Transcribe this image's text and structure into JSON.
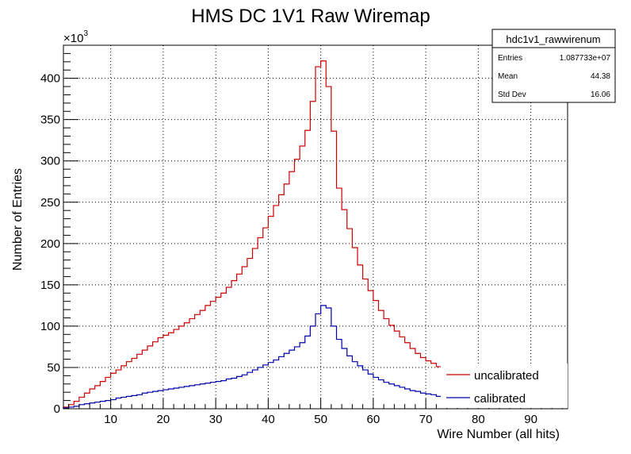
{
  "chart_data": {
    "type": "line",
    "title": "HMS DC 1V1 Raw Wiremap",
    "xlabel": "Wire Number (all hits)",
    "ylabel": "Number of Entries",
    "y_multiplier": "×10",
    "y_multiplier_exp": "3",
    "xlim": [
      1,
      97
    ],
    "ylim": [
      0,
      440
    ],
    "xticks": [
      10,
      20,
      30,
      40,
      50,
      60,
      70,
      80,
      90
    ],
    "yticks": [
      0,
      50,
      100,
      150,
      200,
      250,
      300,
      350,
      400
    ],
    "grid": true,
    "legend_position": "bottom-right",
    "bin_edges_start": 1,
    "bin_width": 1,
    "series": [
      {
        "name": "uncalibrated",
        "color": "#cc0000",
        "values": [
          2,
          5,
          9,
          14,
          19,
          24,
          28,
          33,
          38,
          43,
          47,
          52,
          57,
          61,
          66,
          71,
          76,
          81,
          86,
          89,
          92,
          96,
          100,
          104,
          109,
          114,
          119,
          125,
          130,
          135,
          140,
          147,
          155,
          163,
          172,
          182,
          194,
          207,
          219,
          233,
          246,
          259,
          272,
          287,
          302,
          318,
          337,
          372,
          414,
          421,
          390,
          336,
          267,
          241,
          218,
          195,
          174,
          157,
          143,
          131,
          119,
          109,
          101,
          94,
          87,
          80,
          73,
          67,
          62,
          58,
          55,
          51
        ]
      },
      {
        "name": "calibrated",
        "color": "#0000aa",
        "values": [
          1,
          2,
          3,
          5,
          6,
          7,
          8,
          9,
          10,
          11,
          13,
          14,
          15,
          16,
          17,
          19,
          20,
          21,
          22,
          23,
          24,
          25,
          26,
          27,
          28,
          29,
          30,
          31,
          32,
          33,
          34,
          36,
          37,
          39,
          41,
          44,
          47,
          50,
          53,
          56,
          59,
          63,
          67,
          71,
          75,
          80,
          88,
          100,
          115,
          125,
          122,
          100,
          84,
          73,
          64,
          57,
          52,
          47,
          42,
          38,
          35,
          32,
          30,
          28,
          26,
          24,
          22,
          21,
          19,
          18,
          17,
          15
        ]
      }
    ]
  },
  "stats": {
    "name": "hdc1v1_rawwirenum",
    "rows": [
      {
        "label": "Entries",
        "value": "1.087733e+07"
      },
      {
        "label": "Mean",
        "value": "44.38"
      },
      {
        "label": "Std Dev",
        "value": "16.06"
      }
    ]
  }
}
